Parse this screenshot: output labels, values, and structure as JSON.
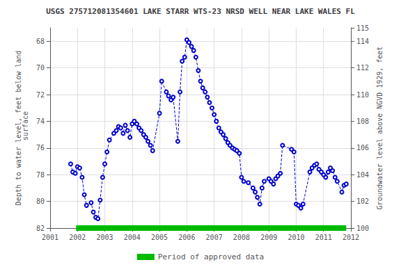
{
  "chart_data": {
    "type": "line",
    "title": "USGS 275712081354601 LAKE STARR WTS-23 NRSD WELL NEAR LAKE WALES FL",
    "ylabel": "Depth to water level, feet below land\n surface",
    "y2label": "Groundwater level above NGVD 1929, feet",
    "xlim": [
      2001,
      2012
    ],
    "xticks": [
      2001,
      2002,
      2003,
      2004,
      2005,
      2006,
      2007,
      2008,
      2009,
      2010,
      2011,
      2012
    ],
    "ylim": [
      82,
      67
    ],
    "yticks": [
      68,
      70,
      72,
      74,
      76,
      78,
      80,
      82
    ],
    "y2lim": [
      100,
      115
    ],
    "y2ticks": [
      100,
      102,
      104,
      106,
      108,
      110,
      112,
      114
    ],
    "grid": true,
    "legend": "bottom",
    "x": [
      2001.75,
      2001.83,
      2001.92,
      2002.0,
      2002.08,
      2002.17,
      2002.25,
      2002.33,
      2002.5,
      2002.58,
      2002.67,
      2002.75,
      2002.83,
      2002.92,
      2003.0,
      2003.08,
      2003.17,
      2003.33,
      2003.42,
      2003.5,
      2003.58,
      2003.67,
      2003.75,
      2003.83,
      2003.92,
      2004.0,
      2004.08,
      2004.17,
      2004.25,
      2004.33,
      2004.42,
      2004.5,
      2004.58,
      2004.67,
      2004.75,
      2005.0,
      2005.08,
      2005.25,
      2005.33,
      2005.42,
      2005.5,
      2005.67,
      2005.75,
      2005.83,
      2005.92,
      2006.0,
      2006.08,
      2006.17,
      2006.25,
      2006.33,
      2006.42,
      2006.5,
      2006.58,
      2006.67,
      2006.75,
      2006.83,
      2006.92,
      2007.0,
      2007.08,
      2007.17,
      2007.25,
      2007.33,
      2007.42,
      2007.5,
      2007.58,
      2007.67,
      2007.75,
      2007.83,
      2007.92,
      2008.0,
      2008.08,
      2008.25,
      2008.42,
      2008.5,
      2008.58,
      2008.67,
      2008.75,
      2008.83,
      2009.0,
      2009.08,
      2009.17,
      2009.25,
      2009.33,
      2009.42,
      2009.5,
      2009.83,
      2009.92,
      2010.0,
      2010.08,
      2010.17,
      2010.25,
      2010.5,
      2010.58,
      2010.67,
      2010.75,
      2010.83,
      2010.92,
      2011.0,
      2011.08,
      2011.17,
      2011.25,
      2011.33,
      2011.42,
      2011.5,
      2011.67,
      2011.75,
      2011.83
    ],
    "series": [
      {
        "color": "#0000cc",
        "marker": "open_circle",
        "line_style": "dashed",
        "values": [
          77.2,
          77.8,
          77.9,
          77.4,
          77.5,
          78.2,
          79.5,
          80.3,
          80.1,
          80.8,
          81.2,
          81.3,
          79.9,
          78.2,
          77.2,
          76.3,
          75.4,
          74.9,
          74.7,
          74.4,
          74.5,
          74.9,
          74.3,
          74.7,
          75.2,
          74.2,
          74.0,
          74.2,
          74.5,
          74.7,
          75.0,
          75.2,
          75.5,
          75.8,
          76.2,
          73.4,
          71.0,
          71.8,
          72.1,
          72.4,
          72.2,
          75.5,
          71.8,
          69.5,
          69.2,
          67.9,
          68.1,
          68.4,
          68.7,
          69.2,
          70.2,
          71.0,
          71.5,
          71.8,
          72.2,
          72.6,
          73.0,
          73.5,
          74.0,
          74.5,
          74.8,
          75.0,
          75.3,
          75.6,
          75.8,
          76.0,
          76.1,
          76.2,
          76.4,
          78.2,
          78.5,
          78.6,
          79.0,
          79.3,
          79.7,
          80.2,
          79.0,
          78.5,
          78.3,
          78.5,
          78.7,
          78.3,
          78.1,
          77.9,
          75.8,
          76.1,
          76.3,
          80.2,
          80.3,
          80.5,
          80.2,
          77.8,
          77.5,
          77.3,
          77.2,
          77.6,
          77.8,
          78.0,
          78.2,
          77.8,
          77.5,
          77.7,
          78.2,
          78.5,
          79.3,
          78.8,
          78.7
        ]
      }
    ],
    "approved_period": {
      "name": "Period of approved data",
      "x": [
        2001.95,
        2011.83
      ],
      "y": 82.0,
      "color": "#00bb00"
    }
  }
}
